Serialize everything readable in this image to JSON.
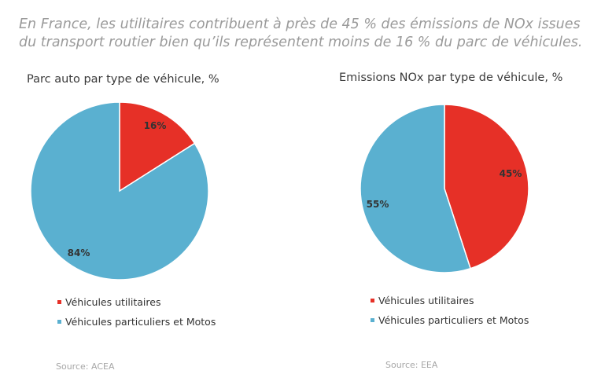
{
  "headline": "En France, les utilitaires contribuent à près de 45 % des émissions de NOx issues du transport routier bien qu’ils représentent moins de 16 % du parc de véhicules.",
  "colors": {
    "utilitaires": "#e63027",
    "particuliers": "#5ab0d0",
    "slice_border": "#ffffff",
    "label": "#333333"
  },
  "chart_data": [
    {
      "type": "pie",
      "title": "Parc auto par type de véhicule, %",
      "slices": [
        {
          "label": "Véhicules utilitaires",
          "value": 16,
          "display": "16%",
          "color": "#e63027"
        },
        {
          "label": "Véhicules particuliers et Motos",
          "value": 84,
          "display": "84%",
          "color": "#5ab0d0"
        }
      ],
      "start": "12 o'clock",
      "direction": "clockwise",
      "legend_position": "bottom",
      "source": "Source: ACEA"
    },
    {
      "type": "pie",
      "title": "Emissions NOx par type de véhicule, %",
      "slices": [
        {
          "label": "Véhicules utilitaires",
          "value": 45,
          "display": "45%",
          "color": "#e63027"
        },
        {
          "label": "Véhicules particuliers et Motos",
          "value": 55,
          "display": "55%",
          "color": "#5ab0d0"
        }
      ],
      "start": "12 o'clock",
      "direction": "clockwise",
      "legend_position": "bottom",
      "source": "Source: EEA"
    }
  ]
}
